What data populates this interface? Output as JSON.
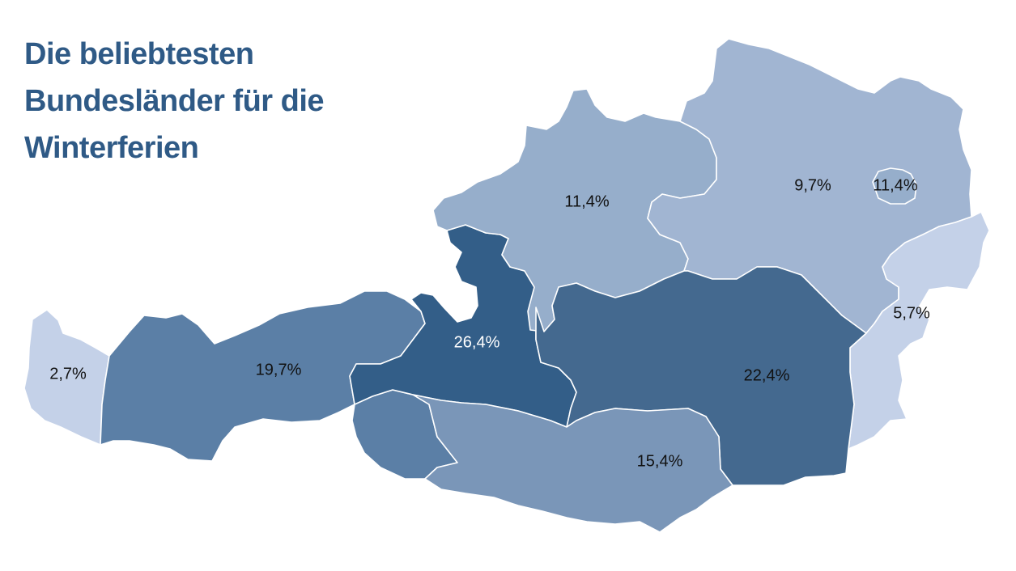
{
  "title": {
    "line1": "Die beliebtesten",
    "line2": "Bundesländer für die",
    "line3": "Winterferien"
  },
  "regions": [
    {
      "id": "vorarlberg",
      "label": "2,7%",
      "value": 2.7,
      "color": "#c4d1e8",
      "label_color": "#111111"
    },
    {
      "id": "tirol",
      "label": "19,7%",
      "value": 19.7,
      "color": "#5b7fa6",
      "label_color": "#111111"
    },
    {
      "id": "osttirol",
      "label": "",
      "value": 19.7,
      "color": "#5b7fa6",
      "label_color": "#111111"
    },
    {
      "id": "salzburg",
      "label": "26,4%",
      "value": 26.4,
      "color": "#335e88",
      "label_color": "#ffffff"
    },
    {
      "id": "oberoesterreich",
      "label": "11,4%",
      "value": 11.4,
      "color": "#96aecb",
      "label_color": "#111111"
    },
    {
      "id": "niederoesterreich",
      "label": "9,7%",
      "value": 9.7,
      "color": "#a1b5d2",
      "label_color": "#111111"
    },
    {
      "id": "wien",
      "label": "11,4%",
      "value": 11.4,
      "color": "#96aecb",
      "label_color": "#111111"
    },
    {
      "id": "burgenland",
      "label": "5,7%",
      "value": 5.7,
      "color": "#c4d1e8",
      "label_color": "#111111"
    },
    {
      "id": "steiermark",
      "label": "22,4%",
      "value": 22.4,
      "color": "#44698f",
      "label_color": "#111111"
    },
    {
      "id": "kaernten",
      "label": "15,4%",
      "value": 15.4,
      "color": "#7a96b8",
      "label_color": "#111111"
    }
  ]
}
